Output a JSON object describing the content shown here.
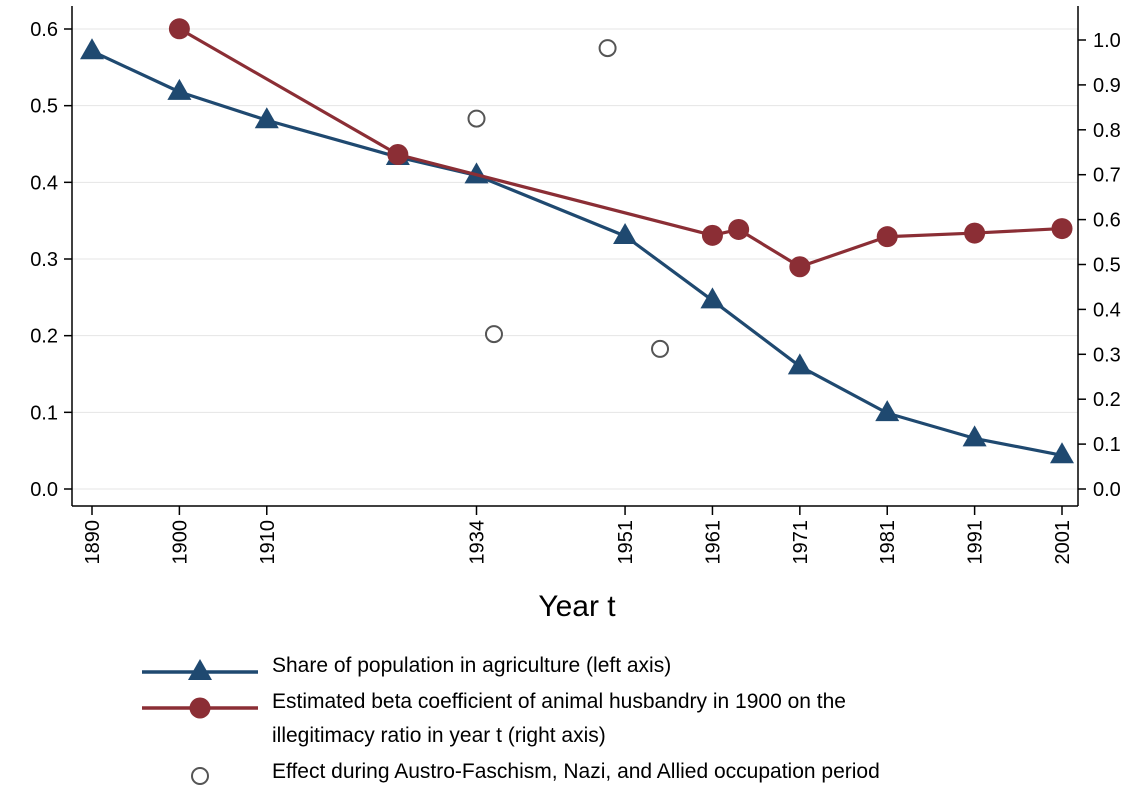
{
  "chart_data": {
    "type": "line",
    "xlabel": "Year t",
    "x_tick_labels": [
      "1890",
      "1900",
      "1910",
      "1934",
      "1951",
      "1961",
      "1971",
      "1981",
      "1991",
      "2001"
    ],
    "x_range": [
      1890,
      2001
    ],
    "left_axis": {
      "range": [
        0,
        0.6
      ],
      "ticks": [
        "0.0",
        "0.1",
        "0.2",
        "0.3",
        "0.4",
        "0.5",
        "0.6"
      ]
    },
    "right_axis": {
      "range": [
        0,
        1.0
      ],
      "ticks": [
        "0.0",
        "0.1",
        "0.2",
        "0.3",
        "0.4",
        "0.5",
        "0.6",
        "0.7",
        "0.8",
        "0.9",
        "1.0"
      ]
    },
    "grid": true,
    "series": [
      {
        "name": "Share of population in agriculture (left axis)",
        "axis": "left",
        "marker": "triangle",
        "color": "#1f4970",
        "x": [
          1890,
          1900,
          1910,
          1925,
          1934,
          1951,
          1961,
          1971,
          1981,
          1991,
          2001
        ],
        "y": [
          0.571,
          0.518,
          0.481,
          0.433,
          0.409,
          0.33,
          0.246,
          0.16,
          0.099,
          0.066,
          0.044
        ]
      },
      {
        "name": "Estimated beta coefficient of animal husbandry in 1900 on the illegitimacy ratio in year t (right axis)",
        "axis": "right",
        "marker": "circle",
        "color": "#8b2e35",
        "x": [
          1900,
          1925,
          1961,
          1964,
          1971,
          1981,
          1991,
          2001
        ],
        "y": [
          1.025,
          0.745,
          0.565,
          0.578,
          0.495,
          0.562,
          0.57,
          0.58
        ]
      },
      {
        "name": "Effect during Austro-Faschism, Nazi, and Allied occupation period",
        "axis": "right",
        "marker": "hollow-circle",
        "color": "#555555",
        "x": [
          1934,
          1936,
          1949,
          1955
        ],
        "y": [
          0.825,
          0.345,
          0.982,
          0.312
        ]
      }
    ],
    "legend": {
      "placement": "bottom",
      "line1": "Share of population in agriculture (left axis)",
      "line2a": "Estimated beta coefficient of animal husbandry in 1900 on the",
      "line2b": "illegitimacy ratio in year t (right axis)",
      "line3": "Effect during Austro-Faschism, Nazi, and Allied occupation period"
    }
  }
}
